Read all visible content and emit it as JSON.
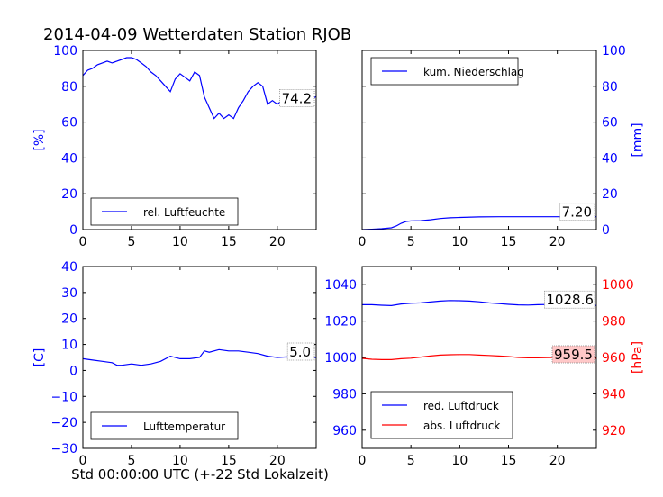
{
  "title": "2014-04-09 Wetterdaten Station RJOB",
  "xlabel": "Std 00:00:00 UTC (+-22 Std Lokalzeit)",
  "colors": {
    "blue": "#0000ff",
    "red": "#ff0000",
    "black": "#000000"
  },
  "chart_data": [
    {
      "type": "line",
      "panel": "top-left",
      "xlim": [
        0,
        24
      ],
      "ylim": [
        0,
        100
      ],
      "xticks": [
        "0",
        "5",
        "10",
        "15",
        "20"
      ],
      "yticks": [
        "0",
        "20",
        "40",
        "60",
        "80",
        "100"
      ],
      "ylabel": "[%]",
      "ylabel_side": "left",
      "ytick_color": "#0000ff",
      "legend_position": "lower-left",
      "last_value_label": "74.2",
      "series": [
        {
          "name": "rel. Luftfeuchte",
          "color": "#0000ff",
          "x": [
            0,
            0.5,
            1,
            1.5,
            2,
            2.5,
            3,
            3.5,
            4,
            4.5,
            5,
            5.5,
            6,
            6.5,
            7,
            7.5,
            8,
            8.5,
            9,
            9.5,
            10,
            10.5,
            11,
            11.5,
            12,
            12.5,
            13,
            13.5,
            14,
            14.5,
            15,
            15.5,
            16,
            16.5,
            17,
            17.5,
            18,
            18.5,
            19,
            19.5,
            20,
            20.5,
            21,
            21.5,
            22,
            22.5,
            23,
            23.5,
            24
          ],
          "y": [
            86,
            89,
            90,
            92,
            93,
            94,
            93,
            94,
            95,
            96,
            96,
            95,
            93,
            91,
            88,
            86,
            83,
            80,
            77,
            84,
            87,
            85,
            83,
            88,
            86,
            74,
            68,
            62,
            65,
            62,
            64,
            62,
            68,
            72,
            77,
            80,
            82,
            80,
            70,
            72,
            70,
            72,
            75,
            76,
            72,
            71,
            72,
            73,
            74.2
          ]
        }
      ]
    },
    {
      "type": "line",
      "panel": "top-right",
      "xlim": [
        0,
        24
      ],
      "ylim": [
        0,
        100
      ],
      "xticks": [
        "0",
        "5",
        "10",
        "15",
        "20"
      ],
      "yticks": [
        "0",
        "20",
        "40",
        "60",
        "80",
        "100"
      ],
      "ylabel": "[mm]",
      "ylabel_side": "right",
      "ytick_color": "#0000ff",
      "legend_position": "upper-left",
      "last_value_label": "7.20",
      "series": [
        {
          "name": "kum. Niederschlag",
          "color": "#0000ff",
          "x": [
            0,
            1,
            2,
            3,
            3.5,
            4,
            4.5,
            5,
            6,
            7,
            8,
            9,
            10,
            12,
            14,
            16,
            18,
            20,
            22,
            24
          ],
          "y": [
            0,
            0.2,
            0.5,
            1,
            2,
            3.5,
            4.5,
            4.8,
            5,
            5.5,
            6.2,
            6.6,
            6.8,
            7.1,
            7.2,
            7.2,
            7.2,
            7.2,
            7.2,
            7.2
          ]
        }
      ]
    },
    {
      "type": "line",
      "panel": "bottom-left",
      "xlim": [
        0,
        24
      ],
      "ylim": [
        -30,
        40
      ],
      "xticks": [
        "0",
        "5",
        "10",
        "15",
        "20"
      ],
      "yticks": [
        "−30",
        "−20",
        "−10",
        "0",
        "10",
        "20",
        "30",
        "40"
      ],
      "ylabel": "[C]",
      "ylabel_side": "left",
      "ytick_color": "#0000ff",
      "legend_position": "lower-left",
      "last_value_label": "5.0",
      "series": [
        {
          "name": "Lufttemperatur",
          "color": "#0000ff",
          "x": [
            0,
            1,
            2,
            3,
            3.5,
            4,
            5,
            6,
            7,
            8,
            9,
            10,
            11,
            12,
            12.5,
            13,
            14,
            15,
            16,
            17,
            18,
            19,
            20,
            21,
            22,
            23,
            24
          ],
          "y": [
            4.5,
            4,
            3.5,
            3,
            2,
            2,
            2.5,
            2,
            2.5,
            3.5,
            5.5,
            4.5,
            4.5,
            5,
            7.5,
            7,
            8,
            7.5,
            7.5,
            7,
            6.5,
            5.5,
            5,
            5.2,
            5,
            5,
            5.0
          ]
        }
      ]
    },
    {
      "type": "line",
      "panel": "bottom-right",
      "xlim": [
        0,
        24
      ],
      "ylim_left": [
        950,
        1050
      ],
      "ylim_right": [
        910,
        1010
      ],
      "xticks": [
        "0",
        "5",
        "10",
        "15",
        "20"
      ],
      "yticks_left": [
        "960",
        "980",
        "1000",
        "1020",
        "1040"
      ],
      "yticks_right": [
        "920",
        "940",
        "960",
        "980",
        "1000"
      ],
      "ylabel_right": "[hPa]",
      "legend_position": "lower-left",
      "last_value_labels": [
        "1028.6",
        "959.5"
      ],
      "series": [
        {
          "name": "red. Luftdruck",
          "color": "#0000ff",
          "axis": "left",
          "x": [
            0,
            1,
            2,
            3,
            4,
            5,
            6,
            7,
            8,
            9,
            10,
            11,
            12,
            13,
            14,
            15,
            16,
            17,
            18,
            19,
            20,
            21,
            22,
            23,
            24
          ],
          "y": [
            1029,
            1029,
            1028.7,
            1028.5,
            1029.4,
            1029.8,
            1030,
            1030.5,
            1031,
            1031.3,
            1031.2,
            1031,
            1030.6,
            1030,
            1029.6,
            1029.2,
            1028.9,
            1028.8,
            1029,
            1029.1,
            1029,
            1028.9,
            1028.8,
            1028.6,
            1028.6
          ]
        },
        {
          "name": "abs. Luftdruck",
          "color": "#ff0000",
          "axis": "right",
          "x": [
            0,
            1,
            2,
            3,
            4,
            5,
            6,
            7,
            8,
            9,
            10,
            11,
            12,
            13,
            14,
            15,
            16,
            17,
            18,
            19,
            20,
            21,
            22,
            23,
            24
          ],
          "y": [
            959.5,
            959,
            958.8,
            958.8,
            959.3,
            959.6,
            960.2,
            960.8,
            961.3,
            961.5,
            961.6,
            961.6,
            961.3,
            961.1,
            960.8,
            960.5,
            960,
            959.8,
            959.8,
            959.9,
            960,
            960,
            959.7,
            959.6,
            959.5
          ]
        }
      ]
    }
  ]
}
